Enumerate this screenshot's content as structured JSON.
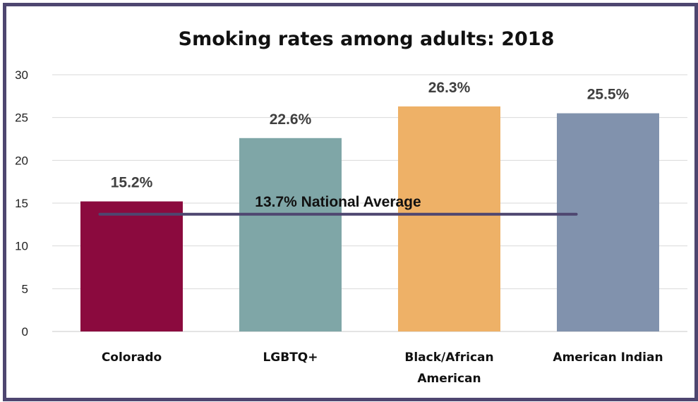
{
  "chart_data": {
    "type": "bar",
    "title": "Smoking rates among adults: 2018",
    "categories": [
      [
        "Colorado"
      ],
      [
        "LGBTQ+"
      ],
      [
        "Black/African",
        "American"
      ],
      [
        "American Indian"
      ]
    ],
    "values": [
      15.2,
      22.6,
      26.3,
      25.5
    ],
    "data_labels": [
      "15.2%",
      "22.6%",
      "26.3%",
      "25.5%"
    ],
    "colors": [
      "#8b0a3e",
      "#7fa6a7",
      "#eeb167",
      "#8192ad"
    ],
    "ylim": [
      0,
      30
    ],
    "yticks": [
      0,
      5,
      10,
      15,
      20,
      25,
      30
    ],
    "grid": true,
    "reference_line": {
      "value": 13.7,
      "label": "13.7% National Average",
      "color": "#4e4670"
    }
  }
}
